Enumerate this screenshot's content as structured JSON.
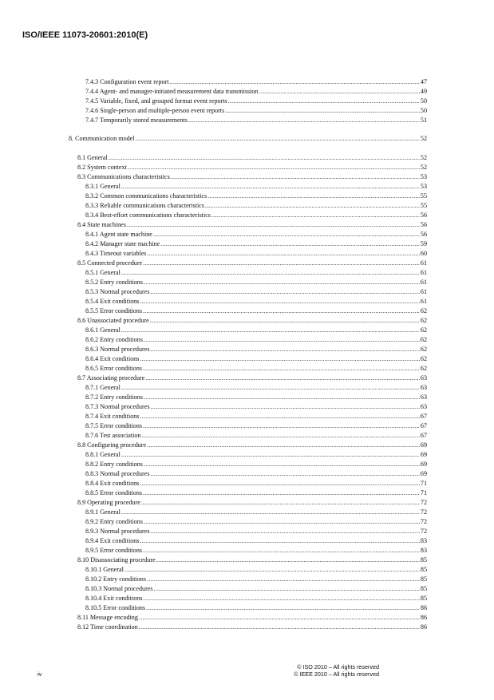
{
  "header": {
    "title": "ISO/IEEE 11073-20601:2010(E)"
  },
  "toc": [
    {
      "level": 3,
      "text": "7.4.3 Configuration event report",
      "page": "47"
    },
    {
      "level": 3,
      "text": "7.4.4 Agent- and manager-initiated measurement data transmission",
      "page": "49"
    },
    {
      "level": 3,
      "text": "7.4.5 Variable, fixed, and grouped format event reports",
      "page": "50"
    },
    {
      "level": 3,
      "text": "7.4.6 Single-person and multiple-person event reports",
      "page": "50"
    },
    {
      "level": 3,
      "text": "7.4.7 Temporarily stored measurements",
      "page": "51"
    },
    {
      "level": 1,
      "text": "8. Communication model",
      "page": "52"
    },
    {
      "level": 2,
      "text": "8.1 General",
      "page": "52"
    },
    {
      "level": 2,
      "text": "8.2 System context",
      "page": "52"
    },
    {
      "level": 2,
      "text": "8.3 Communications characteristics",
      "page": "53"
    },
    {
      "level": 3,
      "text": "8.3.1 General",
      "page": "53"
    },
    {
      "level": 3,
      "text": "8.3.2 Common communications characteristics",
      "page": "55"
    },
    {
      "level": 3,
      "text": "8.3.3 Reliable communications characteristics",
      "page": "55"
    },
    {
      "level": 3,
      "text": "8.3.4 Best-effort communications characteristics",
      "page": "56"
    },
    {
      "level": 2,
      "text": "8.4 State machines",
      "page": "56"
    },
    {
      "level": 3,
      "text": "8.4.1 Agent state machine",
      "page": "56"
    },
    {
      "level": 3,
      "text": "8.4.2 Manager state machine",
      "page": "59"
    },
    {
      "level": 3,
      "text": "8.4.3 Timeout variables",
      "page": "60"
    },
    {
      "level": 2,
      "text": "8.5 Connected procedure",
      "page": "61"
    },
    {
      "level": 3,
      "text": "8.5.1 General",
      "page": "61"
    },
    {
      "level": 3,
      "text": "8.5.2 Entry conditions",
      "page": "61"
    },
    {
      "level": 3,
      "text": "8.5.3 Normal procedures",
      "page": "61"
    },
    {
      "level": 3,
      "text": "8.5.4 Exit conditions",
      "page": "61"
    },
    {
      "level": 3,
      "text": "8.5.5 Error conditions",
      "page": "62"
    },
    {
      "level": 2,
      "text": "8.6 Unassociated procedure",
      "page": "62"
    },
    {
      "level": 3,
      "text": "8.6.1 General",
      "page": "62"
    },
    {
      "level": 3,
      "text": "8.6.2 Entry conditions",
      "page": "62"
    },
    {
      "level": 3,
      "text": "8.6.3 Normal procedures",
      "page": "62"
    },
    {
      "level": 3,
      "text": "8.6.4 Exit conditions",
      "page": "62"
    },
    {
      "level": 3,
      "text": "8.6.5 Error conditions",
      "page": "62"
    },
    {
      "level": 2,
      "text": "8.7 Associating procedure",
      "page": "63"
    },
    {
      "level": 3,
      "text": "8.7.1 General",
      "page": "63"
    },
    {
      "level": 3,
      "text": "8.7.2 Entry conditions",
      "page": "63"
    },
    {
      "level": 3,
      "text": "8.7.3 Normal procedures",
      "page": "63"
    },
    {
      "level": 3,
      "text": "8.7.4 Exit conditions",
      "page": "67"
    },
    {
      "level": 3,
      "text": "8.7.5 Error conditions",
      "page": "67"
    },
    {
      "level": 3,
      "text": "8.7.6 Test association",
      "page": "67"
    },
    {
      "level": 2,
      "text": "8.8 Configuring procedure",
      "page": "69"
    },
    {
      "level": 3,
      "text": "8.8.1 General",
      "page": "69"
    },
    {
      "level": 3,
      "text": "8.8.2 Entry conditions",
      "page": "69"
    },
    {
      "level": 3,
      "text": "8.8.3 Normal procedures",
      "page": "69"
    },
    {
      "level": 3,
      "text": "8.8.4 Exit conditions",
      "page": "71"
    },
    {
      "level": 3,
      "text": "8.8.5 Error conditions",
      "page": "71"
    },
    {
      "level": 2,
      "text": "8.9 Operating procedure",
      "page": "72"
    },
    {
      "level": 3,
      "text": "8.9.1 General",
      "page": "72"
    },
    {
      "level": 3,
      "text": "8.9.2 Entry conditions",
      "page": "72"
    },
    {
      "level": 3,
      "text": "8.9.3 Normal procedures",
      "page": "72"
    },
    {
      "level": 3,
      "text": "8.9.4 Exit conditions",
      "page": "83"
    },
    {
      "level": 3,
      "text": "8.9.5 Error conditions",
      "page": "83"
    },
    {
      "level": 2,
      "text": "8.10 Disassociating procedure",
      "page": "85"
    },
    {
      "level": 3,
      "text": "8.10.1 General",
      "page": "85"
    },
    {
      "level": 3,
      "text": "8.10.2 Entry conditions",
      "page": "85"
    },
    {
      "level": 3,
      "text": "8.10.3 Normal procedures",
      "page": "85"
    },
    {
      "level": 3,
      "text": "8.10.4 Exit conditions",
      "page": "85"
    },
    {
      "level": 3,
      "text": "8.10.5 Error conditions",
      "page": "86"
    },
    {
      "level": 2,
      "text": "8.11 Message encoding",
      "page": "86"
    },
    {
      "level": 2,
      "text": "8.12 Time coordination",
      "page": "86"
    }
  ],
  "footer": {
    "page_number": "iv",
    "copyright_iso": "© ISO 2010 – All rights reserved",
    "copyright_ieee": "© IEEE 2010 – All rights reserved"
  }
}
